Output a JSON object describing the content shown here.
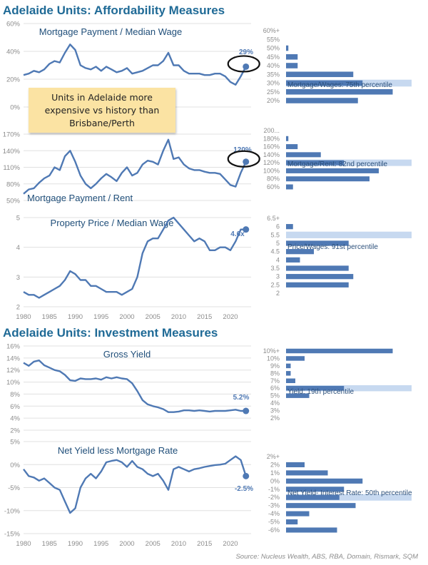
{
  "headings": {
    "affordability": "Adelaide Units: Affordability Measures",
    "investment": "Adelaide Units: Investment Measures"
  },
  "note": "Units in Adelaide more\nexpensive vs history than\nBrisbane/Perth",
  "source": "Source: Nucleus Wealth, ABS, RBA, Domain, Rismark, SQM",
  "colors": {
    "line": "#4f79b4",
    "bar": "#4f79b4",
    "highlight": "#b9d0ec",
    "title": "#1f6a96",
    "ptitle": "#1f4e79",
    "tick": "#8c8c8c",
    "grid": "#e0e0e0"
  },
  "chart_data": [
    {
      "type": "line",
      "title": "Mortgage Payment / Median Wage",
      "x": [
        1980,
        1981,
        1982,
        1983,
        1984,
        1985,
        1986,
        1987,
        1988,
        1989,
        1990,
        1991,
        1992,
        1993,
        1994,
        1995,
        1996,
        1997,
        1998,
        1999,
        2000,
        2001,
        2002,
        2003,
        2004,
        2005,
        2006,
        2007,
        2008,
        2009,
        2010,
        2011,
        2012,
        2013,
        2014,
        2015,
        2016,
        2017,
        2018,
        2019,
        2020,
        2021,
        2022,
        2023
      ],
      "values": [
        23,
        24,
        26,
        25,
        27,
        31,
        33,
        32,
        39,
        45,
        41,
        30,
        28,
        27,
        29,
        26,
        29,
        27,
        25,
        26,
        28,
        24,
        25,
        26,
        28,
        30,
        30,
        33,
        39,
        30,
        30,
        26,
        24,
        24,
        24,
        23,
        23,
        24,
        24,
        22,
        18,
        16,
        22,
        29
      ],
      "ylim": [
        0,
        60
      ],
      "yticks": [
        0,
        20,
        40,
        60
      ],
      "ytick_labels": [
        "0%",
        "20%",
        "40%",
        "60%"
      ],
      "end_label": "29%"
    },
    {
      "type": "line",
      "title": "Mortgage Payment / Rent",
      "x": [
        1980,
        1981,
        1982,
        1983,
        1984,
        1985,
        1986,
        1987,
        1988,
        1989,
        1990,
        1991,
        1992,
        1993,
        1994,
        1995,
        1996,
        1997,
        1998,
        1999,
        2000,
        2001,
        2002,
        2003,
        2004,
        2005,
        2006,
        2007,
        2008,
        2009,
        2010,
        2011,
        2012,
        2013,
        2014,
        2015,
        2016,
        2017,
        2018,
        2019,
        2020,
        2021,
        2022,
        2023
      ],
      "values": [
        62,
        70,
        72,
        82,
        90,
        95,
        110,
        105,
        130,
        140,
        120,
        95,
        80,
        72,
        80,
        90,
        98,
        92,
        85,
        100,
        110,
        95,
        100,
        115,
        122,
        120,
        115,
        140,
        160,
        125,
        128,
        115,
        108,
        105,
        105,
        102,
        100,
        100,
        98,
        88,
        78,
        75,
        100,
        120
      ],
      "ylim": [
        50,
        170
      ],
      "yticks": [
        50,
        80,
        110,
        140,
        170
      ],
      "ytick_labels": [
        "50%",
        "80%",
        "110%",
        "140%",
        "170%"
      ],
      "end_label": "120%"
    },
    {
      "type": "line",
      "title": "Property Price / Median Wage",
      "x": [
        1980,
        1981,
        1982,
        1983,
        1984,
        1985,
        1986,
        1987,
        1988,
        1989,
        1990,
        1991,
        1992,
        1993,
        1994,
        1995,
        1996,
        1997,
        1998,
        1999,
        2000,
        2001,
        2002,
        2003,
        2004,
        2005,
        2006,
        2007,
        2008,
        2009,
        2010,
        2011,
        2012,
        2013,
        2014,
        2015,
        2016,
        2017,
        2018,
        2019,
        2020,
        2021,
        2022,
        2023
      ],
      "values": [
        2.5,
        2.4,
        2.4,
        2.3,
        2.4,
        2.5,
        2.6,
        2.7,
        2.9,
        3.2,
        3.1,
        2.9,
        2.9,
        2.7,
        2.7,
        2.6,
        2.5,
        2.5,
        2.5,
        2.4,
        2.5,
        2.6,
        3.0,
        3.8,
        4.2,
        4.3,
        4.3,
        4.6,
        4.9,
        5.0,
        4.8,
        4.6,
        4.4,
        4.2,
        4.3,
        4.2,
        3.9,
        3.9,
        4.0,
        4.0,
        3.9,
        4.2,
        4.6,
        4.6
      ],
      "ylim": [
        2,
        5
      ],
      "yticks": [
        2,
        3,
        4,
        5
      ],
      "ytick_labels": [
        "2",
        "3",
        "4",
        "5"
      ],
      "xticks": [
        1980,
        1985,
        1990,
        1995,
        2000,
        2005,
        2010,
        2015,
        2020
      ],
      "end_label": "4.6x"
    },
    {
      "type": "line",
      "title": "Gross Yield",
      "x": [
        1980,
        1981,
        1982,
        1983,
        1984,
        1985,
        1986,
        1987,
        1988,
        1989,
        1990,
        1991,
        1992,
        1993,
        1994,
        1995,
        1996,
        1997,
        1998,
        1999,
        2000,
        2001,
        2002,
        2003,
        2004,
        2005,
        2006,
        2007,
        2008,
        2009,
        2010,
        2011,
        2012,
        2013,
        2014,
        2015,
        2016,
        2017,
        2018,
        2019,
        2020,
        2021,
        2022,
        2023
      ],
      "values": [
        13.2,
        12.7,
        13.4,
        13.6,
        12.8,
        12.4,
        12.0,
        11.8,
        11.2,
        10.3,
        10.2,
        10.6,
        10.5,
        10.5,
        10.6,
        10.4,
        10.8,
        10.6,
        10.8,
        10.6,
        10.5,
        9.8,
        8.5,
        7.0,
        6.3,
        6.0,
        5.8,
        5.5,
        5.0,
        5.0,
        5.1,
        5.3,
        5.3,
        5.2,
        5.3,
        5.2,
        5.1,
        5.2,
        5.2,
        5.2,
        5.3,
        5.4,
        5.2,
        5.2
      ],
      "ylim": [
        2,
        16
      ],
      "yticks": [
        2,
        4,
        6,
        8,
        10,
        12,
        14,
        16
      ],
      "ytick_labels": [
        "2%",
        "4%",
        "6%",
        "8%",
        "10%",
        "12%",
        "14%",
        "16%"
      ],
      "end_label": "5.2%"
    },
    {
      "type": "line",
      "title": "Net Yield less Mortgage Rate",
      "x": [
        1980,
        1981,
        1982,
        1983,
        1984,
        1985,
        1986,
        1987,
        1988,
        1989,
        1990,
        1991,
        1992,
        1993,
        1994,
        1995,
        1996,
        1997,
        1998,
        1999,
        2000,
        2001,
        2002,
        2003,
        2004,
        2005,
        2006,
        2007,
        2008,
        2009,
        2010,
        2011,
        2012,
        2013,
        2014,
        2015,
        2016,
        2017,
        2018,
        2019,
        2020,
        2021,
        2022,
        2023
      ],
      "values": [
        -1.0,
        -2.5,
        -2.8,
        -3.5,
        -3.0,
        -4.0,
        -5.0,
        -5.5,
        -8.0,
        -10.5,
        -9.5,
        -5.0,
        -3.0,
        -2.0,
        -3.0,
        -1.5,
        0.5,
        0.8,
        1.0,
        0.5,
        -0.5,
        0.8,
        -0.5,
        -1.0,
        -2.0,
        -2.5,
        -2.0,
        -3.5,
        -5.5,
        -1.0,
        -0.5,
        -1.0,
        -1.5,
        -1.0,
        -0.8,
        -0.5,
        -0.3,
        -0.1,
        0.0,
        0.2,
        1.0,
        1.8,
        1.0,
        -2.5
      ],
      "ylim": [
        -15,
        5
      ],
      "yticks": [
        -15,
        -10,
        -5,
        0,
        5
      ],
      "ytick_labels": [
        "-15%",
        "-10%",
        "-5%",
        "0%",
        "5%"
      ],
      "xticks": [
        1980,
        1985,
        1990,
        1995,
        2000,
        2005,
        2010,
        2015,
        2020
      ],
      "end_label": "-2.5%"
    },
    {
      "type": "bar",
      "orientation": "horizontal",
      "categories": [
        "60%+",
        "55%",
        "50%",
        "45%",
        "40%",
        "35%",
        "30%",
        "25%",
        "20%"
      ],
      "values": [
        0,
        0,
        1,
        5,
        5,
        29,
        33,
        46,
        31
      ],
      "highlight": "30%",
      "label": "Mortgage/Wages: 75th percentile"
    },
    {
      "type": "bar",
      "orientation": "horizontal",
      "categories": [
        "200...",
        "180%",
        "160%",
        "140%",
        "120%",
        "100%",
        "80%",
        "60%"
      ],
      "values": [
        0,
        1,
        5,
        15,
        25,
        40,
        36,
        3
      ],
      "highlight": "120%",
      "label": "Mortgage/Rent: 82nd percentile"
    },
    {
      "type": "bar",
      "orientation": "horizontal",
      "categories": [
        "6.5+",
        "6",
        "5.5",
        "5",
        "4.5",
        "4",
        "3.5",
        "3",
        "2.5",
        "2"
      ],
      "values": [
        0,
        3,
        0,
        27,
        12,
        6,
        27,
        29,
        27,
        0
      ],
      "highlight": "5.5",
      "label": "Price/Wages: 91st percentile"
    },
    {
      "type": "bar",
      "orientation": "horizontal",
      "categories": [
        "10%+",
        "10%",
        "9%",
        "8%",
        "7%",
        "6%",
        "5%",
        "4%",
        "3%",
        "2%"
      ],
      "values": [
        46,
        8,
        2,
        2,
        4,
        25,
        10,
        0,
        0,
        0
      ],
      "highlight": "6%",
      "label": "Yield: 19th percentile"
    },
    {
      "type": "bar",
      "orientation": "horizontal",
      "categories": [
        "2%+",
        "2%",
        "1%",
        "0%",
        "-1%",
        "-2%",
        "-3%",
        "-4%",
        "-5%",
        "-6%"
      ],
      "values": [
        0,
        8,
        18,
        33,
        25,
        23,
        30,
        10,
        5,
        22
      ],
      "highlight": "-2%",
      "label": "Net Yield- Interest Rate: 50th percentile"
    }
  ]
}
